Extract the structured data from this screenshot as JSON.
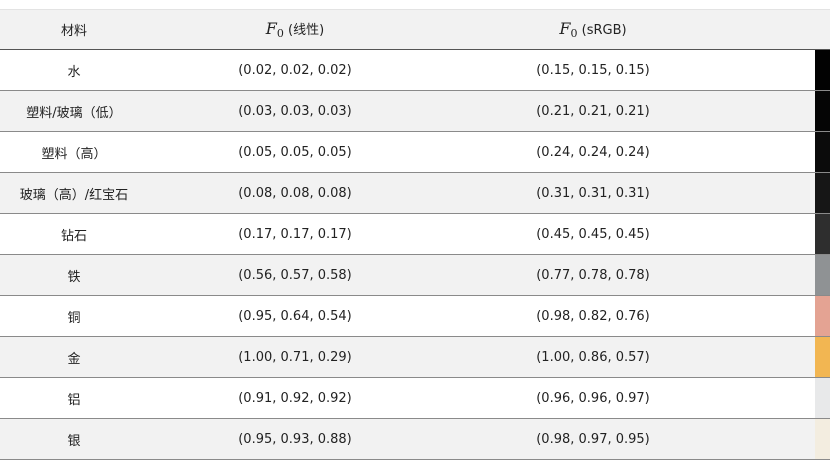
{
  "header": {
    "material": "材料",
    "f0_symbol": "F",
    "f0_sub": "0",
    "linear_suffix": " (线性)",
    "srgb_suffix": " (sRGB)"
  },
  "rows": [
    {
      "material": "水",
      "linear": "(0.02, 0.02, 0.02)",
      "srgb": "(0.15, 0.15, 0.15)",
      "color": "#020202"
    },
    {
      "material": "塑料/玻璃（低）",
      "linear": "(0.03, 0.03, 0.03)",
      "srgb": "(0.21, 0.21, 0.21)",
      "color": "#050505"
    },
    {
      "material": "塑料（高）",
      "linear": "(0.05, 0.05, 0.05)",
      "srgb": "(0.24, 0.24, 0.24)",
      "color": "#0b0b0b"
    },
    {
      "material": "玻璃（高）/红宝石",
      "linear": "(0.08, 0.08, 0.08)",
      "srgb": "(0.31, 0.31, 0.31)",
      "color": "#161616"
    },
    {
      "material": "钻石",
      "linear": "(0.17, 0.17, 0.17)",
      "srgb": "(0.45, 0.45, 0.45)",
      "color": "#2e2e2e"
    },
    {
      "material": "铁",
      "linear": "(0.56, 0.57, 0.58)",
      "srgb": "(0.77, 0.78, 0.78)",
      "color": "#8f9294"
    },
    {
      "material": "铜",
      "linear": "(0.95, 0.64, 0.54)",
      "srgb": "(0.98, 0.82, 0.76)",
      "color": "#e4a393"
    },
    {
      "material": "金",
      "linear": "(1.00, 0.71, 0.29)",
      "srgb": "(1.00, 0.86, 0.57)",
      "color": "#f2b652"
    },
    {
      "material": "铝",
      "linear": "(0.91, 0.92, 0.92)",
      "srgb": "(0.96, 0.96, 0.97)",
      "color": "#e8e9ea"
    },
    {
      "material": "银",
      "linear": "(0.95, 0.93, 0.88)",
      "srgb": "(0.98, 0.97, 0.95)",
      "color": "#f3ede0"
    }
  ]
}
